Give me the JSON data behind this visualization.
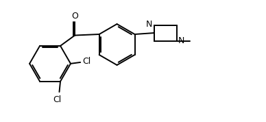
{
  "bg_color": "#ffffff",
  "line_color": "#000000",
  "line_width": 1.4,
  "font_size": 8.5,
  "figsize": [
    3.88,
    1.78
  ],
  "dpi": 100,
  "xlim": [
    0.0,
    10.0
  ],
  "ylim": [
    0.0,
    4.6
  ]
}
